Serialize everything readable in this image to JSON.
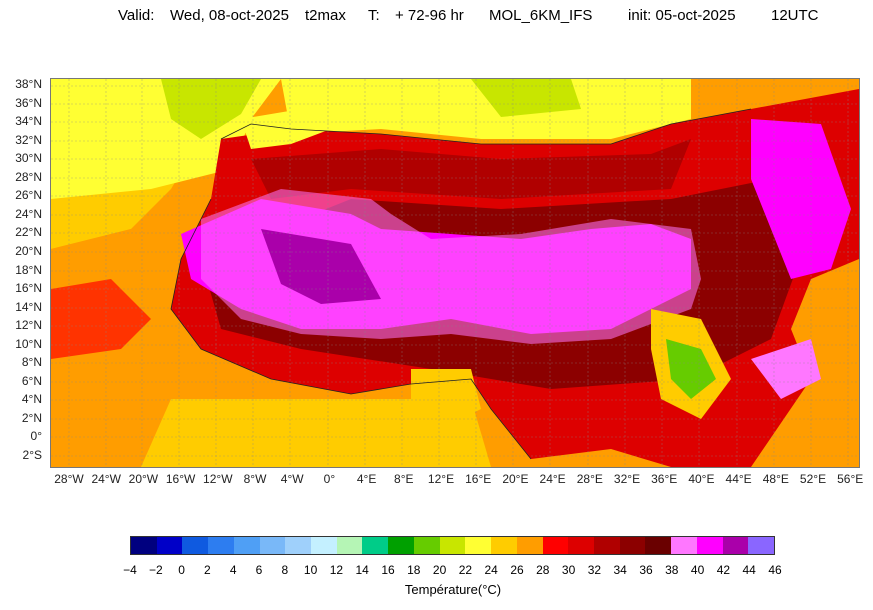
{
  "header": {
    "valid_label": "Valid:",
    "valid_date": "Wed, 08-oct-2025",
    "variable": "t2max",
    "t_label": "T:",
    "t_range": "+ 72-96 hr",
    "model": "MOL_6KM_IFS",
    "init_label": "init: 05-oct-2025",
    "init_time": "12UTC"
  },
  "map": {
    "lat_labels": [
      "38°N",
      "36°N",
      "34°N",
      "32°N",
      "30°N",
      "28°N",
      "26°N",
      "24°N",
      "22°N",
      "20°N",
      "18°N",
      "16°N",
      "14°N",
      "12°N",
      "10°N",
      "8°N",
      "6°N",
      "4°N",
      "2°N",
      "0°",
      "2°S"
    ],
    "lon_labels": [
      "28°W",
      "24°W",
      "20°W",
      "16°W",
      "12°W",
      "8°W",
      "4°W",
      "0°",
      "4°E",
      "8°E",
      "12°E",
      "16°E",
      "20°E",
      "24°E",
      "28°E",
      "32°E",
      "36°E",
      "40°E",
      "44°E",
      "48°E",
      "52°E",
      "56°E"
    ]
  },
  "colorbar": {
    "title": "Température(°C)",
    "ticks": [
      "−4",
      "−2",
      "0",
      "2",
      "4",
      "6",
      "8",
      "10",
      "12",
      "14",
      "16",
      "18",
      "20",
      "22",
      "24",
      "26",
      "28",
      "30",
      "32",
      "34",
      "36",
      "38",
      "40",
      "42",
      "44",
      "46"
    ],
    "colors": [
      "#00007f",
      "#0000c8",
      "#0f5ae0",
      "#2d7df0",
      "#4f9ff5",
      "#79b8f8",
      "#9fd0fb",
      "#c4f0ff",
      "#b5f5b5",
      "#00cc88",
      "#00a000",
      "#66cc00",
      "#c8e600",
      "#ffff33",
      "#ffcc00",
      "#ff9d00",
      "#ff0000",
      "#dd0000",
      "#b00000",
      "#8c0000",
      "#6a0000",
      "#ff77ff",
      "#ff00ff",
      "#aa00aa",
      "#8a66ff"
    ]
  }
}
